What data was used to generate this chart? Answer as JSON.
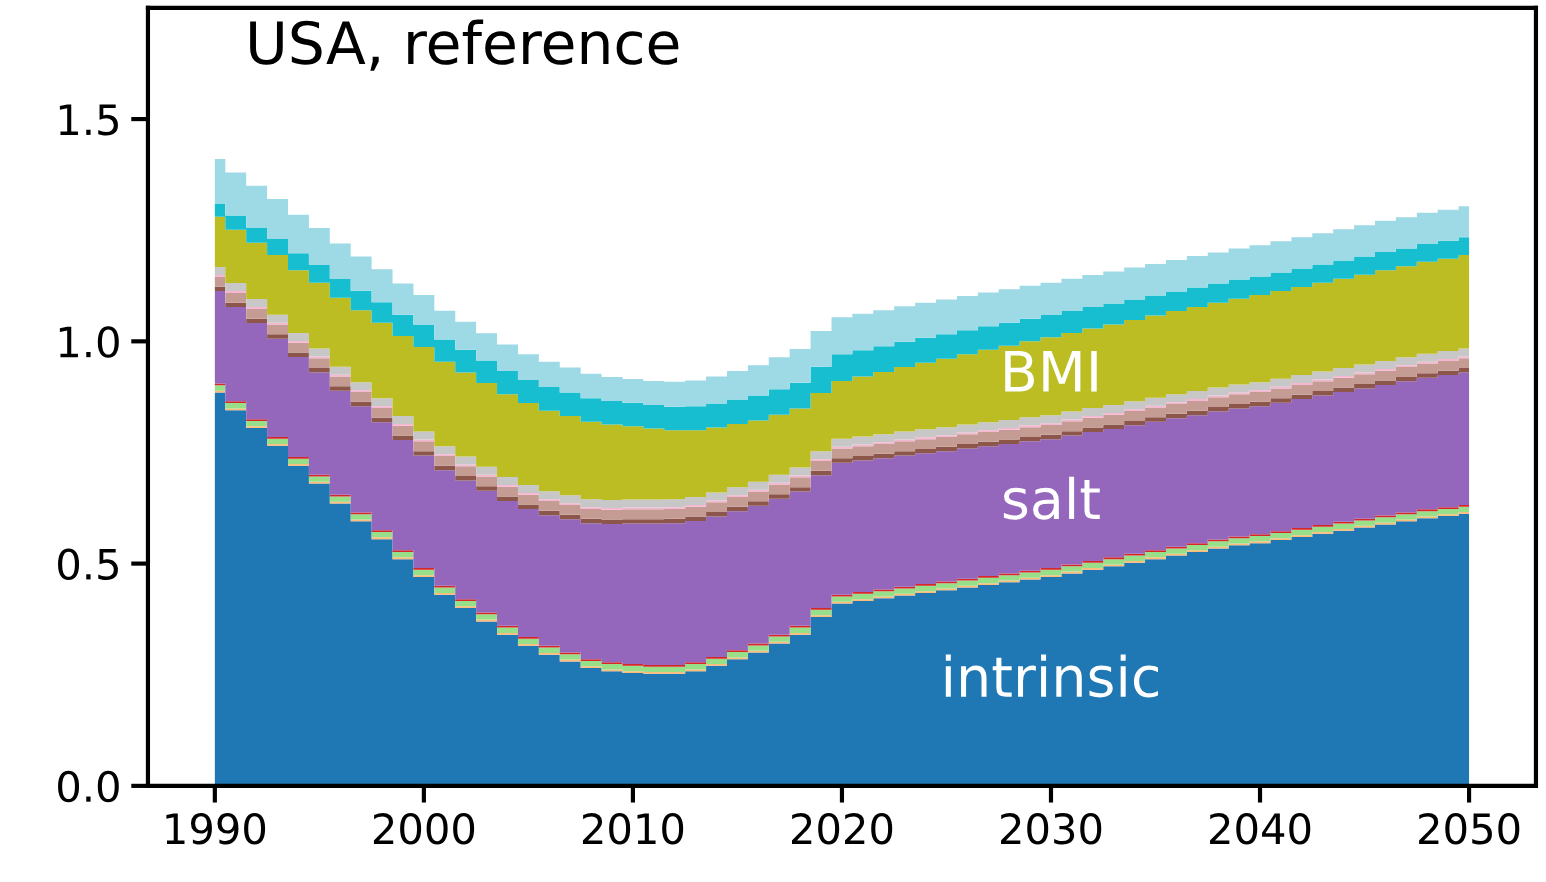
{
  "chart_data": {
    "type": "area",
    "stacked": true,
    "title": "USA, reference",
    "x": [
      1990,
      1991,
      1992,
      1993,
      1994,
      1995,
      1996,
      1997,
      1998,
      1999,
      2000,
      2001,
      2002,
      2003,
      2004,
      2005,
      2006,
      2007,
      2008,
      2009,
      2010,
      2011,
      2012,
      2013,
      2014,
      2015,
      2016,
      2017,
      2018,
      2019,
      2020,
      2021,
      2022,
      2023,
      2024,
      2025,
      2026,
      2027,
      2028,
      2029,
      2030,
      2031,
      2032,
      2033,
      2034,
      2035,
      2036,
      2037,
      2038,
      2039,
      2040,
      2041,
      2042,
      2043,
      2044,
      2045,
      2046,
      2047,
      2048,
      2049,
      2050
    ],
    "xlim": [
      1986.8,
      2053.2
    ],
    "xticks": [
      1990,
      2000,
      2010,
      2020,
      2030,
      2040,
      2050
    ],
    "ylim": [
      0,
      1.75
    ],
    "yticks": [
      {
        "value": 0,
        "label": "0.0"
      },
      {
        "value": 0.5,
        "label": "0.5"
      },
      {
        "value": 1,
        "label": "1.0"
      },
      {
        "value": 1.5,
        "label": "1.5"
      }
    ],
    "grid": false,
    "legend": false,
    "series": [
      {
        "name": "intrinsic",
        "color": "#1f77b4",
        "values": [
          0.885,
          0.845,
          0.805,
          0.765,
          0.72,
          0.68,
          0.635,
          0.595,
          0.555,
          0.51,
          0.47,
          0.43,
          0.4,
          0.37,
          0.34,
          0.315,
          0.295,
          0.28,
          0.265,
          0.258,
          0.254,
          0.252,
          0.252,
          0.258,
          0.27,
          0.285,
          0.3,
          0.32,
          0.34,
          0.38,
          0.41,
          0.416,
          0.422,
          0.428,
          0.434,
          0.44,
          0.446,
          0.452,
          0.458,
          0.464,
          0.47,
          0.478,
          0.486,
          0.494,
          0.502,
          0.51,
          0.518,
          0.526,
          0.534,
          0.541,
          0.546,
          0.553,
          0.56,
          0.567,
          0.574,
          0.581,
          0.588,
          0.595,
          0.602,
          0.607,
          0.612
        ]
      },
      {
        "color": "#ffbb78",
        "values": [
          0.004,
          0.004,
          0.004,
          0.004,
          0.004,
          0.004,
          0.004,
          0.004,
          0.004,
          0.004,
          0.004,
          0.004,
          0.004,
          0.004,
          0.004,
          0.004,
          0.004,
          0.004,
          0.004,
          0.004,
          0.004,
          0.004,
          0.004,
          0.004,
          0.004,
          0.004,
          0.004,
          0.004,
          0.004,
          0.004,
          0.004,
          0.004,
          0.004,
          0.004,
          0.004,
          0.004,
          0.004,
          0.004,
          0.004,
          0.004,
          0.004,
          0.004,
          0.004,
          0.004,
          0.004,
          0.004,
          0.004,
          0.004,
          0.004,
          0.004,
          0.004,
          0.004,
          0.004,
          0.004,
          0.004,
          0.004,
          0.004,
          0.004,
          0.004,
          0.004,
          0.004
        ]
      },
      {
        "color": "#98df8a",
        "values": [
          0.012,
          0.012,
          0.012,
          0.012,
          0.012,
          0.012,
          0.012,
          0.012,
          0.012,
          0.012,
          0.012,
          0.012,
          0.012,
          0.012,
          0.012,
          0.012,
          0.012,
          0.012,
          0.012,
          0.012,
          0.012,
          0.012,
          0.012,
          0.012,
          0.012,
          0.012,
          0.012,
          0.012,
          0.012,
          0.012,
          0.012,
          0.012,
          0.012,
          0.012,
          0.012,
          0.012,
          0.012,
          0.012,
          0.012,
          0.012,
          0.012,
          0.012,
          0.012,
          0.012,
          0.012,
          0.012,
          0.012,
          0.012,
          0.012,
          0.012,
          0.012,
          0.012,
          0.012,
          0.012,
          0.012,
          0.012,
          0.012,
          0.012,
          0.012,
          0.012,
          0.012
        ]
      },
      {
        "color": "#d62728",
        "values": [
          0.004,
          0.004,
          0.004,
          0.004,
          0.004,
          0.004,
          0.004,
          0.004,
          0.004,
          0.004,
          0.004,
          0.004,
          0.004,
          0.004,
          0.004,
          0.004,
          0.004,
          0.004,
          0.004,
          0.004,
          0.004,
          0.004,
          0.004,
          0.004,
          0.004,
          0.004,
          0.004,
          0.004,
          0.004,
          0.004,
          0.004,
          0.004,
          0.004,
          0.004,
          0.004,
          0.004,
          0.004,
          0.004,
          0.004,
          0.004,
          0.004,
          0.004,
          0.004,
          0.004,
          0.004,
          0.004,
          0.004,
          0.004,
          0.004,
          0.004,
          0.004,
          0.004,
          0.004,
          0.004,
          0.004,
          0.004,
          0.004,
          0.004,
          0.004,
          0.004,
          0.004
        ]
      },
      {
        "name": "salt",
        "color": "#9467bd",
        "values": [
          0.208,
          0.212,
          0.216,
          0.221,
          0.225,
          0.23,
          0.234,
          0.239,
          0.243,
          0.248,
          0.253,
          0.26,
          0.267,
          0.274,
          0.281,
          0.288,
          0.294,
          0.3,
          0.306,
          0.311,
          0.316,
          0.318,
          0.319,
          0.318,
          0.316,
          0.313,
          0.31,
          0.306,
          0.302,
          0.299,
          0.297,
          0.296,
          0.295,
          0.295,
          0.294,
          0.293,
          0.293,
          0.292,
          0.291,
          0.291,
          0.29,
          0.29,
          0.29,
          0.289,
          0.289,
          0.289,
          0.289,
          0.288,
          0.288,
          0.288,
          0.288,
          0.289,
          0.29,
          0.291,
          0.292,
          0.293,
          0.294,
          0.295,
          0.296,
          0.297,
          0.298
        ]
      },
      {
        "color": "#8c564b",
        "values": [
          0.01,
          0.01,
          0.01,
          0.01,
          0.01,
          0.01,
          0.01,
          0.01,
          0.01,
          0.01,
          0.01,
          0.01,
          0.01,
          0.01,
          0.01,
          0.01,
          0.01,
          0.01,
          0.01,
          0.01,
          0.01,
          0.01,
          0.01,
          0.01,
          0.01,
          0.01,
          0.01,
          0.01,
          0.01,
          0.01,
          0.01,
          0.01,
          0.01,
          0.01,
          0.01,
          0.01,
          0.01,
          0.01,
          0.01,
          0.01,
          0.01,
          0.01,
          0.01,
          0.01,
          0.01,
          0.01,
          0.01,
          0.01,
          0.01,
          0.01,
          0.01,
          0.01,
          0.01,
          0.01,
          0.01,
          0.01,
          0.01,
          0.01,
          0.01,
          0.01,
          0.01
        ]
      },
      {
        "color": "#c49c94",
        "values": [
          0.022,
          0.022,
          0.022,
          0.022,
          0.022,
          0.022,
          0.022,
          0.022,
          0.022,
          0.022,
          0.022,
          0.022,
          0.022,
          0.022,
          0.022,
          0.022,
          0.022,
          0.022,
          0.022,
          0.022,
          0.022,
          0.022,
          0.022,
          0.022,
          0.022,
          0.022,
          0.022,
          0.022,
          0.022,
          0.022,
          0.022,
          0.022,
          0.022,
          0.022,
          0.022,
          0.022,
          0.022,
          0.022,
          0.022,
          0.022,
          0.022,
          0.022,
          0.022,
          0.022,
          0.022,
          0.022,
          0.022,
          0.022,
          0.022,
          0.022,
          0.022,
          0.022,
          0.022,
          0.022,
          0.022,
          0.022,
          0.022,
          0.022,
          0.022,
          0.022,
          0.022
        ]
      },
      {
        "color": "#f7b6d2",
        "values": [
          0.004,
          0.004,
          0.004,
          0.004,
          0.004,
          0.004,
          0.004,
          0.004,
          0.004,
          0.004,
          0.004,
          0.004,
          0.004,
          0.004,
          0.004,
          0.004,
          0.004,
          0.004,
          0.004,
          0.004,
          0.004,
          0.004,
          0.004,
          0.004,
          0.004,
          0.004,
          0.004,
          0.004,
          0.004,
          0.004,
          0.004,
          0.004,
          0.004,
          0.004,
          0.004,
          0.004,
          0.004,
          0.004,
          0.004,
          0.004,
          0.004,
          0.004,
          0.004,
          0.004,
          0.004,
          0.004,
          0.004,
          0.004,
          0.004,
          0.004,
          0.004,
          0.004,
          0.004,
          0.004,
          0.004,
          0.004,
          0.004,
          0.004,
          0.004,
          0.004,
          0.004
        ]
      },
      {
        "color": "#c7c7c7",
        "values": [
          0.018,
          0.018,
          0.018,
          0.018,
          0.018,
          0.018,
          0.018,
          0.018,
          0.018,
          0.018,
          0.018,
          0.018,
          0.018,
          0.018,
          0.018,
          0.018,
          0.018,
          0.018,
          0.018,
          0.018,
          0.018,
          0.018,
          0.018,
          0.018,
          0.018,
          0.018,
          0.018,
          0.018,
          0.018,
          0.018,
          0.018,
          0.018,
          0.018,
          0.018,
          0.018,
          0.018,
          0.018,
          0.018,
          0.018,
          0.018,
          0.018,
          0.018,
          0.018,
          0.018,
          0.018,
          0.018,
          0.018,
          0.018,
          0.018,
          0.018,
          0.018,
          0.018,
          0.018,
          0.018,
          0.018,
          0.018,
          0.018,
          0.018,
          0.018,
          0.018,
          0.018
        ]
      },
      {
        "name": "BMI",
        "color": "#bcbd22",
        "values": [
          0.113,
          0.12,
          0.127,
          0.134,
          0.141,
          0.148,
          0.155,
          0.162,
          0.17,
          0.18,
          0.19,
          0.19,
          0.189,
          0.188,
          0.186,
          0.184,
          0.181,
          0.178,
          0.174,
          0.17,
          0.165,
          0.16,
          0.155,
          0.15,
          0.146,
          0.142,
          0.138,
          0.135,
          0.133,
          0.131,
          0.13,
          0.135,
          0.14,
          0.145,
          0.15,
          0.154,
          0.158,
          0.163,
          0.167,
          0.171,
          0.175,
          0.177,
          0.179,
          0.181,
          0.183,
          0.185,
          0.187,
          0.189,
          0.191,
          0.193,
          0.196,
          0.197,
          0.198,
          0.2,
          0.201,
          0.202,
          0.204,
          0.205,
          0.207,
          0.208,
          0.21
        ]
      },
      {
        "color": "#17becf",
        "values": [
          0.03,
          0.032,
          0.034,
          0.036,
          0.038,
          0.04,
          0.042,
          0.044,
          0.046,
          0.048,
          0.05,
          0.05,
          0.051,
          0.051,
          0.052,
          0.052,
          0.053,
          0.053,
          0.053,
          0.053,
          0.053,
          0.053,
          0.053,
          0.054,
          0.054,
          0.055,
          0.056,
          0.057,
          0.058,
          0.059,
          0.06,
          0.059,
          0.058,
          0.057,
          0.056,
          0.055,
          0.054,
          0.053,
          0.052,
          0.051,
          0.05,
          0.049,
          0.048,
          0.047,
          0.046,
          0.045,
          0.044,
          0.044,
          0.043,
          0.043,
          0.042,
          0.042,
          0.042,
          0.041,
          0.041,
          0.041,
          0.041,
          0.04,
          0.04,
          0.04,
          0.04
        ]
      },
      {
        "color": "#9edae5",
        "values": [
          0.1,
          0.097,
          0.094,
          0.09,
          0.087,
          0.083,
          0.08,
          0.077,
          0.074,
          0.07,
          0.067,
          0.065,
          0.063,
          0.061,
          0.06,
          0.058,
          0.057,
          0.056,
          0.055,
          0.054,
          0.053,
          0.054,
          0.056,
          0.058,
          0.061,
          0.064,
          0.068,
          0.072,
          0.076,
          0.08,
          0.083,
          0.082,
          0.081,
          0.08,
          0.079,
          0.078,
          0.077,
          0.076,
          0.075,
          0.074,
          0.073,
          0.073,
          0.072,
          0.072,
          0.072,
          0.071,
          0.071,
          0.071,
          0.07,
          0.07,
          0.07,
          0.07,
          0.07,
          0.07,
          0.07,
          0.07,
          0.07,
          0.07,
          0.07,
          0.07,
          0.07
        ]
      }
    ]
  }
}
